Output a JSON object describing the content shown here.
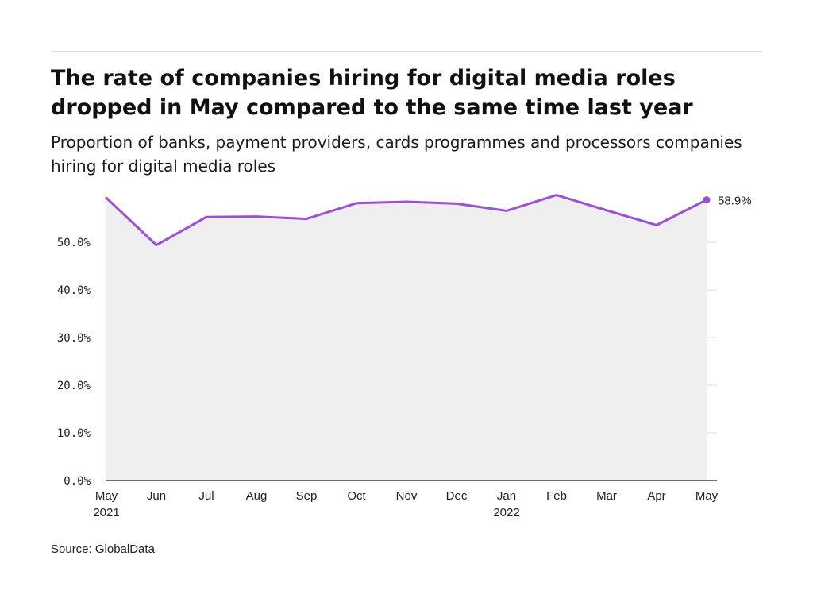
{
  "header": {
    "title": "The rate of companies hiring for digital media roles dropped in May compared to the same time last year",
    "subtitle": "Proportion of banks, payment providers, cards programmes and processors companies hiring for digital media roles"
  },
  "footer": {
    "source": "Source: GlobalData"
  },
  "colors": {
    "line": "#9b4fe0",
    "area": "#efefef",
    "grid": "#dddddd",
    "axis": "#222222"
  },
  "chart_data": {
    "type": "area",
    "title": "The rate of companies hiring for digital media roles dropped in May compared to the same time last year",
    "subtitle": "Proportion of banks, payment providers, cards programmes and processors companies hiring for digital media roles",
    "xlabel": "",
    "ylabel": "",
    "categories": [
      "May 2021",
      "Jun",
      "Jul",
      "Aug",
      "Sep",
      "Oct",
      "Nov",
      "Dec",
      "Jan 2022",
      "Feb",
      "Mar",
      "Apr",
      "May"
    ],
    "x_tick_labels": [
      [
        "May",
        "2021"
      ],
      [
        "Jun"
      ],
      [
        "Jul"
      ],
      [
        "Aug"
      ],
      [
        "Sep"
      ],
      [
        "Oct"
      ],
      [
        "Nov"
      ],
      [
        "Dec"
      ],
      [
        "Jan",
        "2022"
      ],
      [
        "Feb"
      ],
      [
        "Mar"
      ],
      [
        "Apr"
      ],
      [
        "May"
      ]
    ],
    "series": [
      {
        "values": [
          59.3,
          49.4,
          55.3,
          55.4,
          54.9,
          58.2,
          58.5,
          58.1,
          56.6,
          59.9,
          56.7,
          53.6,
          58.9
        ]
      }
    ],
    "y_ticks": [
      0,
      10,
      20,
      30,
      40,
      50
    ],
    "y_tick_labels": [
      "0.0%",
      "10.0%",
      "20.0%",
      "30.0%",
      "40.0%",
      "50.0%"
    ],
    "ylim": [
      0,
      60
    ],
    "end_label": "58.9%",
    "grid": true,
    "legend": "none"
  }
}
